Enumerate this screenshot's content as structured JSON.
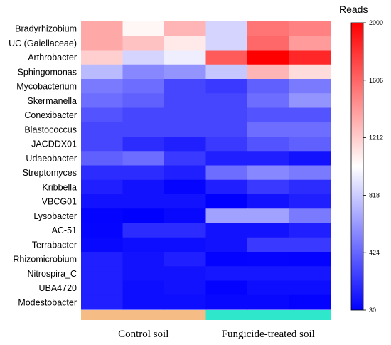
{
  "chart_data": {
    "type": "heatmap",
    "rows": [
      "Bradyrhizobium",
      "UC (Gaiellaceae)",
      "Arthrobacter",
      "Sphingomonas",
      "Mycobacterium",
      "Skermanella",
      "Conexibacter",
      "Blastococcus",
      "JACDDX01",
      "Udaeobacter",
      "Streptomyces",
      "Kribbella",
      "VBCG01",
      "Lysobacter",
      "AC-51",
      "Terrabacter",
      "Rhizomicrobium",
      "Nitrospira_C",
      "UBA4720",
      "Modestobacter"
    ],
    "values": [
      [
        1350,
        1050,
        1300,
        850,
        1550,
        1500
      ],
      [
        1350,
        1250,
        1100,
        850,
        1600,
        1400
      ],
      [
        1200,
        850,
        950,
        1650,
        2000,
        1850
      ],
      [
        750,
        550,
        600,
        800,
        1300,
        1150
      ],
      [
        500,
        450,
        300,
        250,
        400,
        500
      ],
      [
        450,
        400,
        300,
        300,
        450,
        600
      ],
      [
        350,
        300,
        300,
        300,
        350,
        350
      ],
      [
        300,
        300,
        300,
        300,
        450,
        450
      ],
      [
        300,
        200,
        150,
        250,
        350,
        400
      ],
      [
        400,
        450,
        250,
        150,
        150,
        100
      ],
      [
        200,
        200,
        150,
        450,
        550,
        500
      ],
      [
        150,
        100,
        50,
        150,
        250,
        200
      ],
      [
        100,
        100,
        100,
        30,
        100,
        150
      ],
      [
        40,
        30,
        60,
        650,
        650,
        500
      ],
      [
        50,
        200,
        200,
        100,
        100,
        150
      ],
      [
        60,
        80,
        80,
        100,
        250,
        250
      ],
      [
        150,
        100,
        150,
        40,
        50,
        40
      ],
      [
        150,
        100,
        100,
        120,
        120,
        120
      ],
      [
        150,
        80,
        100,
        40,
        80,
        80
      ],
      [
        150,
        80,
        80,
        60,
        60,
        40
      ]
    ],
    "groups": [
      {
        "label": "Control soil",
        "color": "#F6BC85",
        "columns": [
          0,
          1,
          2
        ]
      },
      {
        "label": "Fungicide-treated soil",
        "color": "#2FE8CC",
        "columns": [
          3,
          4,
          5
        ]
      }
    ],
    "colorbar": {
      "title": "Reads",
      "min": 30,
      "max": 2000,
      "ticks": [
        2000,
        1606,
        1212,
        818,
        424,
        30
      ],
      "colors": {
        "low": "#0000FF",
        "mid": "#FFFFFF",
        "high": "#FF0000"
      }
    }
  }
}
